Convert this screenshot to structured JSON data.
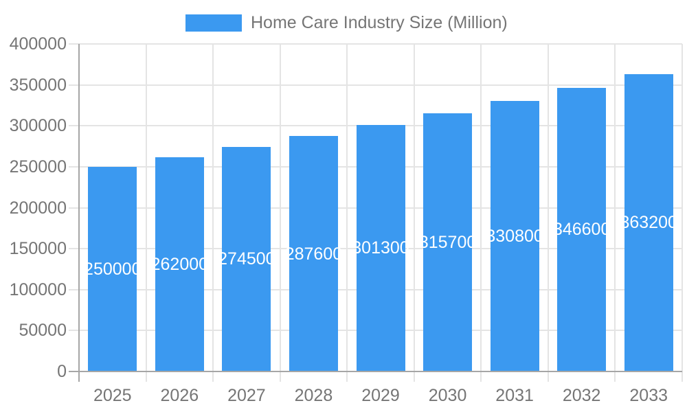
{
  "chart_data": {
    "type": "bar",
    "title": "Home Care Industry Size (Million)",
    "legend": {
      "position": "top",
      "entries": [
        "Home Care Industry Size (Million)"
      ]
    },
    "categories": [
      "2025",
      "2026",
      "2027",
      "2028",
      "2029",
      "2030",
      "2031",
      "2032",
      "2033"
    ],
    "series": [
      {
        "name": "Home Care Industry Size (Million)",
        "values": [
          250000,
          262000,
          274500,
          287600,
          301300,
          315700,
          330800,
          346600,
          363200
        ],
        "bar_labels": [
          "250000",
          "262000",
          "274500",
          "287600",
          "301300",
          "315700",
          "330800",
          "346600",
          "363200"
        ]
      }
    ],
    "xlabel": "",
    "ylabel": "",
    "ylim": [
      0,
      400000
    ],
    "yticks": [
      0,
      50000,
      100000,
      150000,
      200000,
      250000,
      300000,
      350000,
      400000
    ],
    "grid": true,
    "colors": {
      "bar": "#3B99F0",
      "bar_label_text": "#ffffff",
      "axis_text": "#757575",
      "gridline": "#e4e4e4",
      "axis_line": "#a6a6a6",
      "background": "#ffffff"
    }
  }
}
